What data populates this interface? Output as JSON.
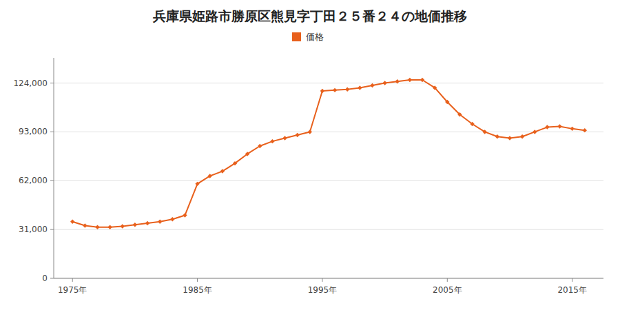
{
  "chart_data": {
    "type": "line",
    "title": "兵庫県姫路市勝原区熊見字丁田２５番２４の地価推移",
    "x": [
      1975,
      1976,
      1977,
      1978,
      1979,
      1980,
      1981,
      1982,
      1983,
      1984,
      1985,
      1986,
      1987,
      1988,
      1989,
      1990,
      1991,
      1992,
      1993,
      1994,
      1995,
      1996,
      1997,
      1998,
      1999,
      2000,
      2001,
      2002,
      2003,
      2004,
      2005,
      2006,
      2007,
      2008,
      2009,
      2010,
      2011,
      2012,
      2013,
      2014,
      2015,
      2016
    ],
    "series": [
      {
        "name": "価格",
        "color": "#E8601C",
        "marker": "diamond",
        "line_style": "solid",
        "values": [
          36000,
          33500,
          32500,
          32500,
          33000,
          34000,
          35000,
          36000,
          37500,
          40000,
          60000,
          65000,
          68000,
          73000,
          79000,
          84000,
          87000,
          89000,
          91000,
          93000,
          119000,
          119500,
          120000,
          121000,
          122500,
          124000,
          125000,
          126000,
          126000,
          121000,
          112000,
          104000,
          98000,
          93000,
          90000,
          89000,
          90000,
          93000,
          96000,
          96500,
          95000,
          94000
        ]
      }
    ],
    "xlim": [
      1973.5,
      2017.5
    ],
    "xticks": [
      {
        "value": 1975,
        "label": "1975年"
      },
      {
        "value": 1985,
        "label": "1985年"
      },
      {
        "value": 1995,
        "label": "1995年"
      },
      {
        "value": 2005,
        "label": "2005年"
      },
      {
        "value": 2015,
        "label": "2015年"
      }
    ],
    "ylim": [
      0,
      140000
    ],
    "yticks": [
      0,
      {
        "value": 31000,
        "label": "31,000"
      },
      {
        "value": 62000,
        "label": "62,000"
      },
      {
        "value": 93000,
        "label": "93,000"
      },
      {
        "value": 124000,
        "label": "124,000"
      }
    ],
    "grid": true,
    "legend": "top"
  }
}
